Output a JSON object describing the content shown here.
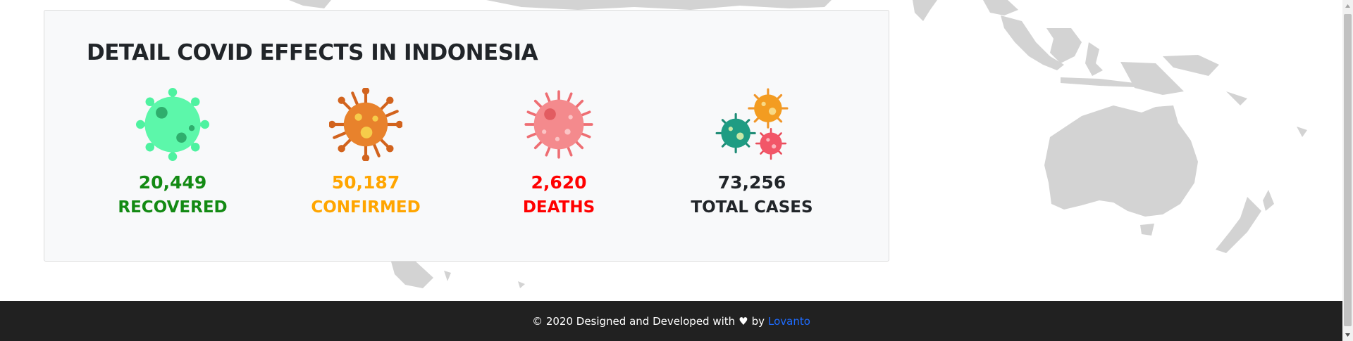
{
  "detail": {
    "title": "DETAIL COVID EFFECTS IN INDONESIA",
    "stats": [
      {
        "value": "20,449",
        "label": "RECOVERED",
        "color": "#138a13",
        "icon": "green-virus-icon"
      },
      {
        "value": "50,187",
        "label": "CONFIRMED",
        "color": "#ffa500",
        "icon": "orange-virus-icon"
      },
      {
        "value": "2,620",
        "label": "DEATHS",
        "color": "#ff0000",
        "icon": "pink-virus-icon"
      },
      {
        "value": "73,256",
        "label": "TOTAL CASES",
        "color": "#212529",
        "icon": "virus-cluster-icon"
      }
    ]
  },
  "footer": {
    "prefix": "© 2020 Designed and Developed with",
    "heart": "♥",
    "by": "by",
    "author": "Lovanto",
    "background": "#212121",
    "link_color": "#1e6cff"
  },
  "background": {
    "map_color": "#d3d3d3",
    "icon": "world-map-icon"
  }
}
